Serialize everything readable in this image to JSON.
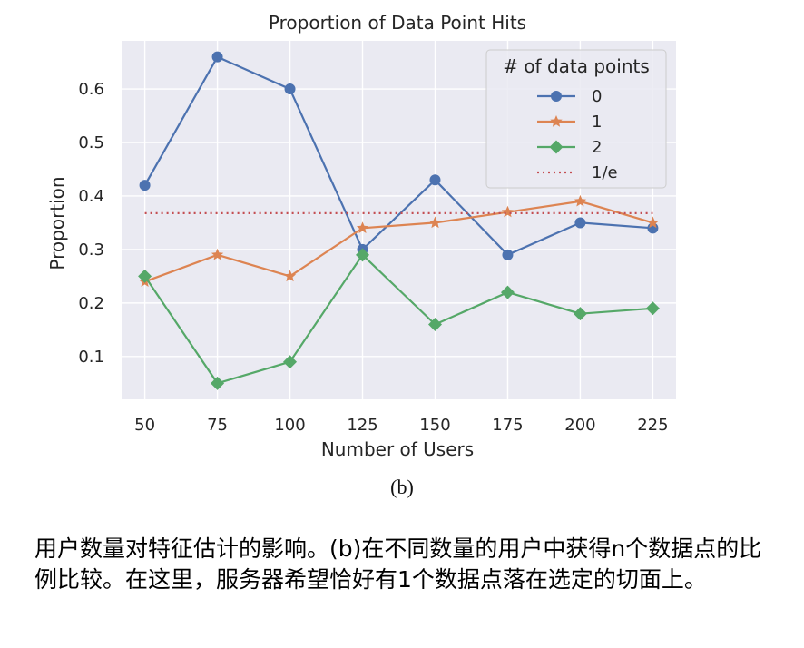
{
  "chart_data": {
    "type": "line",
    "title": "Proportion of Data Point Hits",
    "xlabel": "Number of Users",
    "ylabel": "Proportion",
    "x": [
      50,
      75,
      100,
      125,
      150,
      175,
      200,
      225
    ],
    "xticks": [
      "50",
      "75",
      "100",
      "125",
      "150",
      "175",
      "200",
      "225"
    ],
    "yticks": [
      "0.1",
      "0.2",
      "0.3",
      "0.4",
      "0.5",
      "0.6"
    ],
    "ylim": [
      0.02,
      0.69
    ],
    "grid": true,
    "legend": {
      "title": "# of data points",
      "placement": "top-right"
    },
    "series": [
      {
        "name": "0",
        "color": "#4c72b0",
        "marker": "circle",
        "values": [
          0.42,
          0.66,
          0.6,
          0.3,
          0.43,
          0.29,
          0.35,
          0.34
        ]
      },
      {
        "name": "1",
        "color": "#dd8452",
        "marker": "star",
        "values": [
          0.24,
          0.29,
          0.25,
          0.34,
          0.35,
          0.37,
          0.39,
          0.35
        ]
      },
      {
        "name": "2",
        "color": "#55a868",
        "marker": "diamond",
        "values": [
          0.25,
          0.05,
          0.09,
          0.29,
          0.16,
          0.22,
          0.18,
          0.19
        ]
      },
      {
        "name": "1/e",
        "color": "#c44e52",
        "marker": "none",
        "dashed": true,
        "values": [
          0.3679,
          0.3679,
          0.3679,
          0.3679,
          0.3679,
          0.3679,
          0.3679,
          0.3679
        ]
      }
    ]
  },
  "subcaption": "(b)",
  "caption": "用户数量对特征估计的影响。(b)在不同数量的用户中获得n个数据点的比例比较。在这里，服务器希望恰好有1个数据点落在选定的切面上。"
}
